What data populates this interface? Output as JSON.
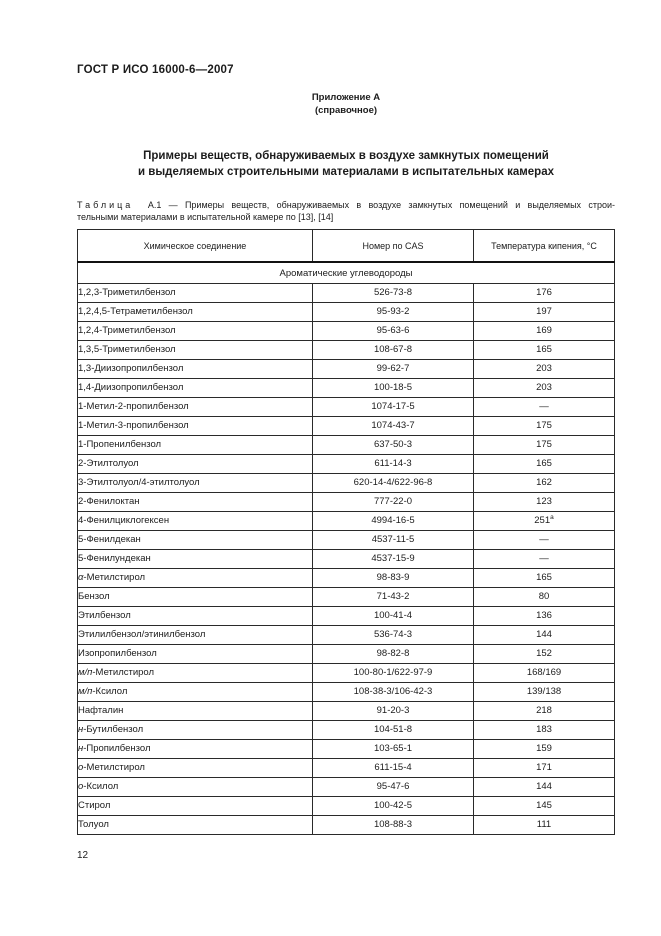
{
  "page": {
    "doc_number": "ГОСТ Р ИСО 16000-6—2007",
    "page_number": "12"
  },
  "annex": {
    "line1": "Приложение А",
    "line2": "(справочное)"
  },
  "title": {
    "line1": "Примеры веществ, обнаруживаемых в воздухе замкнутых помещений",
    "line2": "и выделяемых строительными материалами в испытательных камерах"
  },
  "caption": {
    "label": "Таблица",
    "line1_rest": "А.1 — Примеры веществ, обнаруживаемых в воздухе замкнутых помещений и выделяемых строи-",
    "line2": "тельными материалами в испытательной камере по [13], [14]"
  },
  "table": {
    "headers": [
      "Химическое соединение",
      "Номер по CAS",
      "Температура кипения, °С"
    ],
    "section": "Ароматические углеводороды",
    "rows": [
      {
        "italic": "",
        "name": "1,2,3-Триметилбензол",
        "cas": "526-73-8",
        "bp": "176"
      },
      {
        "italic": "",
        "name": "1,2,4,5-Тетраметилбензол",
        "cas": "95-93-2",
        "bp": "197"
      },
      {
        "italic": "",
        "name": "1,2,4-Триметилбензол",
        "cas": "95-63-6",
        "bp": "169"
      },
      {
        "italic": "",
        "name": "1,3,5-Триметилбензол",
        "cas": "108-67-8",
        "bp": "165"
      },
      {
        "italic": "",
        "name": "1,3-Диизопропилбензол",
        "cas": "99-62-7",
        "bp": "203"
      },
      {
        "italic": "",
        "name": "1,4-Диизопропилбензол",
        "cas": "100-18-5",
        "bp": "203"
      },
      {
        "italic": "",
        "name": "1-Метил-2-пропилбензол",
        "cas": "1074-17-5",
        "bp": "—"
      },
      {
        "italic": "",
        "name": "1-Метил-3-пропилбензол",
        "cas": "1074-43-7",
        "bp": "175"
      },
      {
        "italic": "",
        "name": "1-Пропенилбензол",
        "cas": "637-50-3",
        "bp": "175"
      },
      {
        "italic": "",
        "name": "2-Этилтолуол",
        "cas": "611-14-3",
        "bp": "165"
      },
      {
        "italic": "",
        "name": "3-Этилтолуол/4-этилтолуол",
        "cas": "620-14-4/622-96-8",
        "bp": "162"
      },
      {
        "italic": "",
        "name": "2-Фенилоктан",
        "cas": "777-22-0",
        "bp": "123"
      },
      {
        "italic": "",
        "name": "4-Фенилциклогексен",
        "cas": "4994-16-5",
        "bp": "251",
        "bp_sup": "а"
      },
      {
        "italic": "",
        "name": "5-Фенилдекан",
        "cas": "4537-11-5",
        "bp": "—"
      },
      {
        "italic": "",
        "name": "5-Фенилундекан",
        "cas": "4537-15-9",
        "bp": "—"
      },
      {
        "italic": "α",
        "name": "-Метилстирол",
        "cas": "98-83-9",
        "bp": "165"
      },
      {
        "italic": "",
        "name": "Бензол",
        "cas": "71-43-2",
        "bp": "80"
      },
      {
        "italic": "",
        "name": "Этилбензол",
        "cas": "100-41-4",
        "bp": "136"
      },
      {
        "italic": "",
        "name": "Этилилбензол/этинилбензол",
        "cas": "536-74-3",
        "bp": "144"
      },
      {
        "italic": "",
        "name": "Изопропилбензол",
        "cas": "98-82-8",
        "bp": "152"
      },
      {
        "italic": "м/п",
        "name": "-Метилстирол",
        "cas": "100-80-1/622-97-9",
        "bp": "168/169"
      },
      {
        "italic": "м/п",
        "name": "-Ксилол",
        "cas": "108-38-3/106-42-3",
        "bp": "139/138"
      },
      {
        "italic": "",
        "name": "Нафталин",
        "cas": "91-20-3",
        "bp": "218"
      },
      {
        "italic": "н",
        "name": "-Бутилбензол",
        "cas": "104-51-8",
        "bp": "183"
      },
      {
        "italic": "н",
        "name": "-Пропилбензол",
        "cas": "103-65-1",
        "bp": "159"
      },
      {
        "italic": "о",
        "name": "-Метилстирол",
        "cas": "611-15-4",
        "bp": "171"
      },
      {
        "italic": "о",
        "name": "-Ксилол",
        "cas": "95-47-6",
        "bp": "144"
      },
      {
        "italic": "",
        "name": "Стирол",
        "cas": "100-42-5",
        "bp": "145"
      },
      {
        "italic": "",
        "name": "Толуол",
        "cas": "108-88-3",
        "bp": "111"
      }
    ]
  }
}
